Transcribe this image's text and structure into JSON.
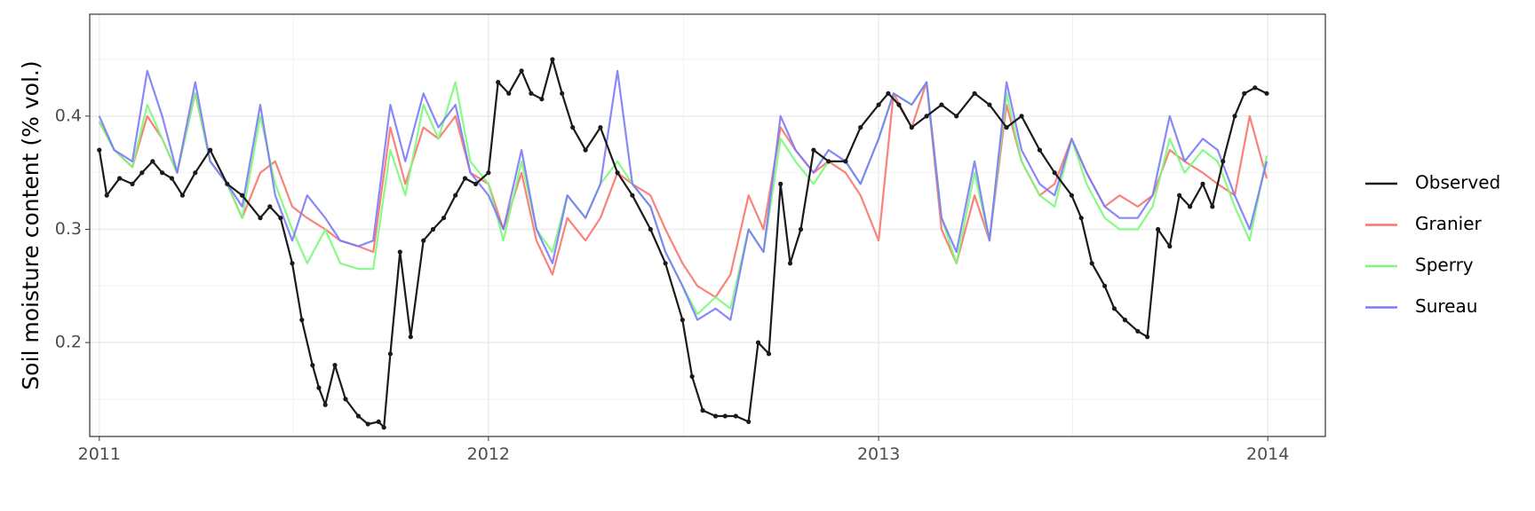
{
  "chart_data": {
    "type": "line",
    "title": "",
    "xlabel": "",
    "ylabel": "Soil moisture content (% vol.)",
    "x_ticks": [
      "2011",
      "2012",
      "2013",
      "2014"
    ],
    "y_ticks": [
      "0.2",
      "0.3",
      "0.4"
    ],
    "xlim": [
      "2010-12-23",
      "2014-02-24"
    ],
    "ylim": [
      0.117,
      0.49
    ],
    "grid": true,
    "legend_position": "right",
    "series": [
      {
        "name": "Observed",
        "color": "#1a1a1a",
        "markers": true,
        "x": [
          "2011-01-01",
          "2011-01-08",
          "2011-01-20",
          "2011-02-01",
          "2011-02-10",
          "2011-02-20",
          "2011-03-01",
          "2011-03-10",
          "2011-03-20",
          "2011-04-01",
          "2011-04-15",
          "2011-05-01",
          "2011-05-15",
          "2011-06-01",
          "2011-06-10",
          "2011-06-20",
          "2011-07-01",
          "2011-07-10",
          "2011-07-20",
          "2011-07-26",
          "2011-08-01",
          "2011-08-10",
          "2011-08-20",
          "2011-09-01",
          "2011-09-10",
          "2011-09-20",
          "2011-09-25",
          "2011-10-01",
          "2011-10-10",
          "2011-10-20",
          "2011-11-01",
          "2011-11-10",
          "2011-11-20",
          "2011-12-01",
          "2011-12-10",
          "2011-12-20",
          "2012-01-01",
          "2012-01-10",
          "2012-01-20",
          "2012-02-01",
          "2012-02-10",
          "2012-02-20",
          "2012-03-01",
          "2012-03-10",
          "2012-03-20",
          "2012-04-01",
          "2012-04-15",
          "2012-05-01",
          "2012-05-15",
          "2012-06-01",
          "2012-06-15",
          "2012-07-01",
          "2012-07-10",
          "2012-07-20",
          "2012-08-01",
          "2012-08-10",
          "2012-08-20",
          "2012-09-01",
          "2012-09-10",
          "2012-09-20",
          "2012-10-01",
          "2012-10-10",
          "2012-10-20",
          "2012-11-01",
          "2012-11-15",
          "2012-12-01",
          "2012-12-15",
          "2013-01-01",
          "2013-01-10",
          "2013-01-20",
          "2013-02-01",
          "2013-02-15",
          "2013-03-01",
          "2013-03-15",
          "2013-04-01",
          "2013-04-15",
          "2013-05-01",
          "2013-05-15",
          "2013-06-01",
          "2013-06-15",
          "2013-07-01",
          "2013-07-10",
          "2013-07-20",
          "2013-08-01",
          "2013-08-10",
          "2013-08-20",
          "2013-09-01",
          "2013-09-10",
          "2013-09-20",
          "2013-10-01",
          "2013-10-10",
          "2013-10-20",
          "2013-11-01",
          "2013-11-10",
          "2013-11-20",
          "2013-12-01",
          "2013-12-10",
          "2013-12-20",
          "2013-12-31"
        ],
        "y": [
          0.37,
          0.33,
          0.345,
          0.34,
          0.35,
          0.36,
          0.35,
          0.345,
          0.33,
          0.35,
          0.37,
          0.34,
          0.33,
          0.31,
          0.32,
          0.31,
          0.27,
          0.22,
          0.18,
          0.16,
          0.145,
          0.18,
          0.15,
          0.135,
          0.128,
          0.13,
          0.125,
          0.19,
          0.28,
          0.205,
          0.29,
          0.3,
          0.31,
          0.33,
          0.345,
          0.34,
          0.35,
          0.43,
          0.42,
          0.44,
          0.42,
          0.415,
          0.45,
          0.42,
          0.39,
          0.37,
          0.39,
          0.35,
          0.33,
          0.3,
          0.27,
          0.22,
          0.17,
          0.14,
          0.135,
          0.135,
          0.135,
          0.13,
          0.2,
          0.19,
          0.34,
          0.27,
          0.3,
          0.37,
          0.36,
          0.36,
          0.39,
          0.41,
          0.42,
          0.41,
          0.39,
          0.4,
          0.41,
          0.4,
          0.42,
          0.41,
          0.39,
          0.4,
          0.37,
          0.35,
          0.33,
          0.31,
          0.27,
          0.25,
          0.23,
          0.22,
          0.21,
          0.205,
          0.3,
          0.285,
          0.33,
          0.32,
          0.34,
          0.32,
          0.36,
          0.4,
          0.42,
          0.425,
          0.42
        ]
      },
      {
        "name": "Granier",
        "color": "#f8766d",
        "markers": false,
        "x": [
          "2011-01-01",
          "2011-01-15",
          "2011-02-01",
          "2011-02-15",
          "2011-03-01",
          "2011-03-15",
          "2011-04-01",
          "2011-04-15",
          "2011-05-01",
          "2011-05-15",
          "2011-06-01",
          "2011-06-15",
          "2011-07-01",
          "2011-07-15",
          "2011-08-01",
          "2011-08-15",
          "2011-09-01",
          "2011-09-15",
          "2011-10-01",
          "2011-10-15",
          "2011-11-01",
          "2011-11-15",
          "2011-12-01",
          "2011-12-15",
          "2012-01-01",
          "2012-01-15",
          "2012-02-01",
          "2012-02-15",
          "2012-03-01",
          "2012-03-15",
          "2012-04-01",
          "2012-04-15",
          "2012-05-01",
          "2012-05-15",
          "2012-06-01",
          "2012-06-15",
          "2012-07-01",
          "2012-07-15",
          "2012-08-01",
          "2012-08-15",
          "2012-09-01",
          "2012-09-15",
          "2012-10-01",
          "2012-10-15",
          "2012-11-01",
          "2012-11-15",
          "2012-12-01",
          "2012-12-15",
          "2013-01-01",
          "2013-01-15",
          "2013-02-01",
          "2013-02-15",
          "2013-03-01",
          "2013-03-15",
          "2013-04-01",
          "2013-04-15",
          "2013-05-01",
          "2013-05-15",
          "2013-06-01",
          "2013-06-15",
          "2013-07-01",
          "2013-07-15",
          "2013-08-01",
          "2013-08-15",
          "2013-09-01",
          "2013-09-15",
          "2013-10-01",
          "2013-10-15",
          "2013-11-01",
          "2013-11-15",
          "2013-12-01",
          "2013-12-15",
          "2013-12-31"
        ],
        "y": [
          0.395,
          0.37,
          0.355,
          0.4,
          0.38,
          0.35,
          0.42,
          0.36,
          0.34,
          0.31,
          0.35,
          0.36,
          0.32,
          0.31,
          0.3,
          0.29,
          0.285,
          0.28,
          0.39,
          0.34,
          0.39,
          0.38,
          0.4,
          0.35,
          0.34,
          0.3,
          0.35,
          0.29,
          0.26,
          0.31,
          0.29,
          0.31,
          0.35,
          0.34,
          0.33,
          0.3,
          0.27,
          0.25,
          0.24,
          0.26,
          0.33,
          0.3,
          0.39,
          0.37,
          0.35,
          0.36,
          0.35,
          0.33,
          0.29,
          0.42,
          0.39,
          0.43,
          0.3,
          0.27,
          0.33,
          0.29,
          0.41,
          0.36,
          0.33,
          0.34,
          0.38,
          0.35,
          0.32,
          0.33,
          0.32,
          0.33,
          0.37,
          0.36,
          0.35,
          0.34,
          0.33,
          0.4,
          0.345
        ]
      },
      {
        "name": "Sperry",
        "color": "#7cf97c",
        "markers": false,
        "x": [
          "2011-01-01",
          "2011-01-15",
          "2011-02-01",
          "2011-02-15",
          "2011-03-01",
          "2011-03-15",
          "2011-04-01",
          "2011-04-15",
          "2011-05-01",
          "2011-05-15",
          "2011-06-01",
          "2011-06-15",
          "2011-07-01",
          "2011-07-15",
          "2011-08-01",
          "2011-08-15",
          "2011-09-01",
          "2011-09-15",
          "2011-10-01",
          "2011-10-15",
          "2011-11-01",
          "2011-11-15",
          "2011-12-01",
          "2011-12-15",
          "2012-01-01",
          "2012-01-15",
          "2012-02-01",
          "2012-02-15",
          "2012-03-01",
          "2012-03-15",
          "2012-04-01",
          "2012-04-15",
          "2012-05-01",
          "2012-05-15",
          "2012-06-01",
          "2012-06-15",
          "2012-07-01",
          "2012-07-15",
          "2012-08-01",
          "2012-08-15",
          "2012-09-01",
          "2012-09-15",
          "2012-10-01",
          "2012-10-15",
          "2012-11-01",
          "2012-11-15",
          "2012-12-01",
          "2012-12-15",
          "2013-01-01",
          "2013-01-15",
          "2013-02-01",
          "2013-02-15",
          "2013-03-01",
          "2013-03-15",
          "2013-04-01",
          "2013-04-15",
          "2013-05-01",
          "2013-05-15",
          "2013-06-01",
          "2013-06-15",
          "2013-07-01",
          "2013-07-15",
          "2013-08-01",
          "2013-08-15",
          "2013-09-01",
          "2013-09-15",
          "2013-10-01",
          "2013-10-15",
          "2013-11-01",
          "2013-11-15",
          "2013-12-01",
          "2013-12-15",
          "2013-12-31"
        ],
        "y": [
          0.395,
          0.37,
          0.355,
          0.41,
          0.38,
          0.35,
          0.42,
          0.36,
          0.34,
          0.31,
          0.4,
          0.34,
          0.3,
          0.27,
          0.3,
          0.27,
          0.265,
          0.265,
          0.37,
          0.33,
          0.41,
          0.38,
          0.43,
          0.36,
          0.34,
          0.29,
          0.36,
          0.3,
          0.28,
          0.33,
          0.31,
          0.34,
          0.36,
          0.34,
          0.32,
          0.28,
          0.25,
          0.225,
          0.24,
          0.23,
          0.3,
          0.28,
          0.38,
          0.36,
          0.34,
          0.36,
          0.36,
          0.34,
          0.38,
          0.42,
          0.41,
          0.43,
          0.31,
          0.27,
          0.35,
          0.29,
          0.42,
          0.36,
          0.33,
          0.32,
          0.38,
          0.34,
          0.31,
          0.3,
          0.3,
          0.32,
          0.38,
          0.35,
          0.37,
          0.36,
          0.32,
          0.29,
          0.365
        ]
      },
      {
        "name": "Sureau",
        "color": "#7b7bf8",
        "markers": false,
        "x": [
          "2011-01-01",
          "2011-01-15",
          "2011-02-01",
          "2011-02-15",
          "2011-03-01",
          "2011-03-15",
          "2011-04-01",
          "2011-04-15",
          "2011-05-01",
          "2011-05-15",
          "2011-06-01",
          "2011-06-15",
          "2011-07-01",
          "2011-07-15",
          "2011-08-01",
          "2011-08-15",
          "2011-09-01",
          "2011-09-15",
          "2011-10-01",
          "2011-10-15",
          "2011-11-01",
          "2011-11-15",
          "2011-12-01",
          "2011-12-15",
          "2012-01-01",
          "2012-01-15",
          "2012-02-01",
          "2012-02-15",
          "2012-03-01",
          "2012-03-15",
          "2012-04-01",
          "2012-04-15",
          "2012-05-01",
          "2012-05-15",
          "2012-06-01",
          "2012-06-15",
          "2012-07-01",
          "2012-07-15",
          "2012-08-01",
          "2012-08-15",
          "2012-09-01",
          "2012-09-15",
          "2012-10-01",
          "2012-10-15",
          "2012-11-01",
          "2012-11-15",
          "2012-12-01",
          "2012-12-15",
          "2013-01-01",
          "2013-01-15",
          "2013-02-01",
          "2013-02-15",
          "2013-03-01",
          "2013-03-15",
          "2013-04-01",
          "2013-04-15",
          "2013-05-01",
          "2013-05-15",
          "2013-06-01",
          "2013-06-15",
          "2013-07-01",
          "2013-07-15",
          "2013-08-01",
          "2013-08-15",
          "2013-09-01",
          "2013-09-15",
          "2013-10-01",
          "2013-10-15",
          "2013-11-01",
          "2013-11-15",
          "2013-12-01",
          "2013-12-15",
          "2013-12-31"
        ],
        "y": [
          0.4,
          0.37,
          0.36,
          0.44,
          0.4,
          0.35,
          0.43,
          0.36,
          0.34,
          0.32,
          0.41,
          0.33,
          0.29,
          0.33,
          0.31,
          0.29,
          0.285,
          0.29,
          0.41,
          0.36,
          0.42,
          0.39,
          0.41,
          0.35,
          0.33,
          0.3,
          0.37,
          0.3,
          0.27,
          0.33,
          0.31,
          0.34,
          0.44,
          0.34,
          0.32,
          0.28,
          0.25,
          0.22,
          0.23,
          0.22,
          0.3,
          0.28,
          0.4,
          0.37,
          0.35,
          0.37,
          0.36,
          0.34,
          0.38,
          0.42,
          0.41,
          0.43,
          0.31,
          0.28,
          0.36,
          0.29,
          0.43,
          0.37,
          0.34,
          0.33,
          0.38,
          0.35,
          0.32,
          0.31,
          0.31,
          0.33,
          0.4,
          0.36,
          0.38,
          0.37,
          0.33,
          0.3,
          0.36
        ]
      }
    ]
  }
}
